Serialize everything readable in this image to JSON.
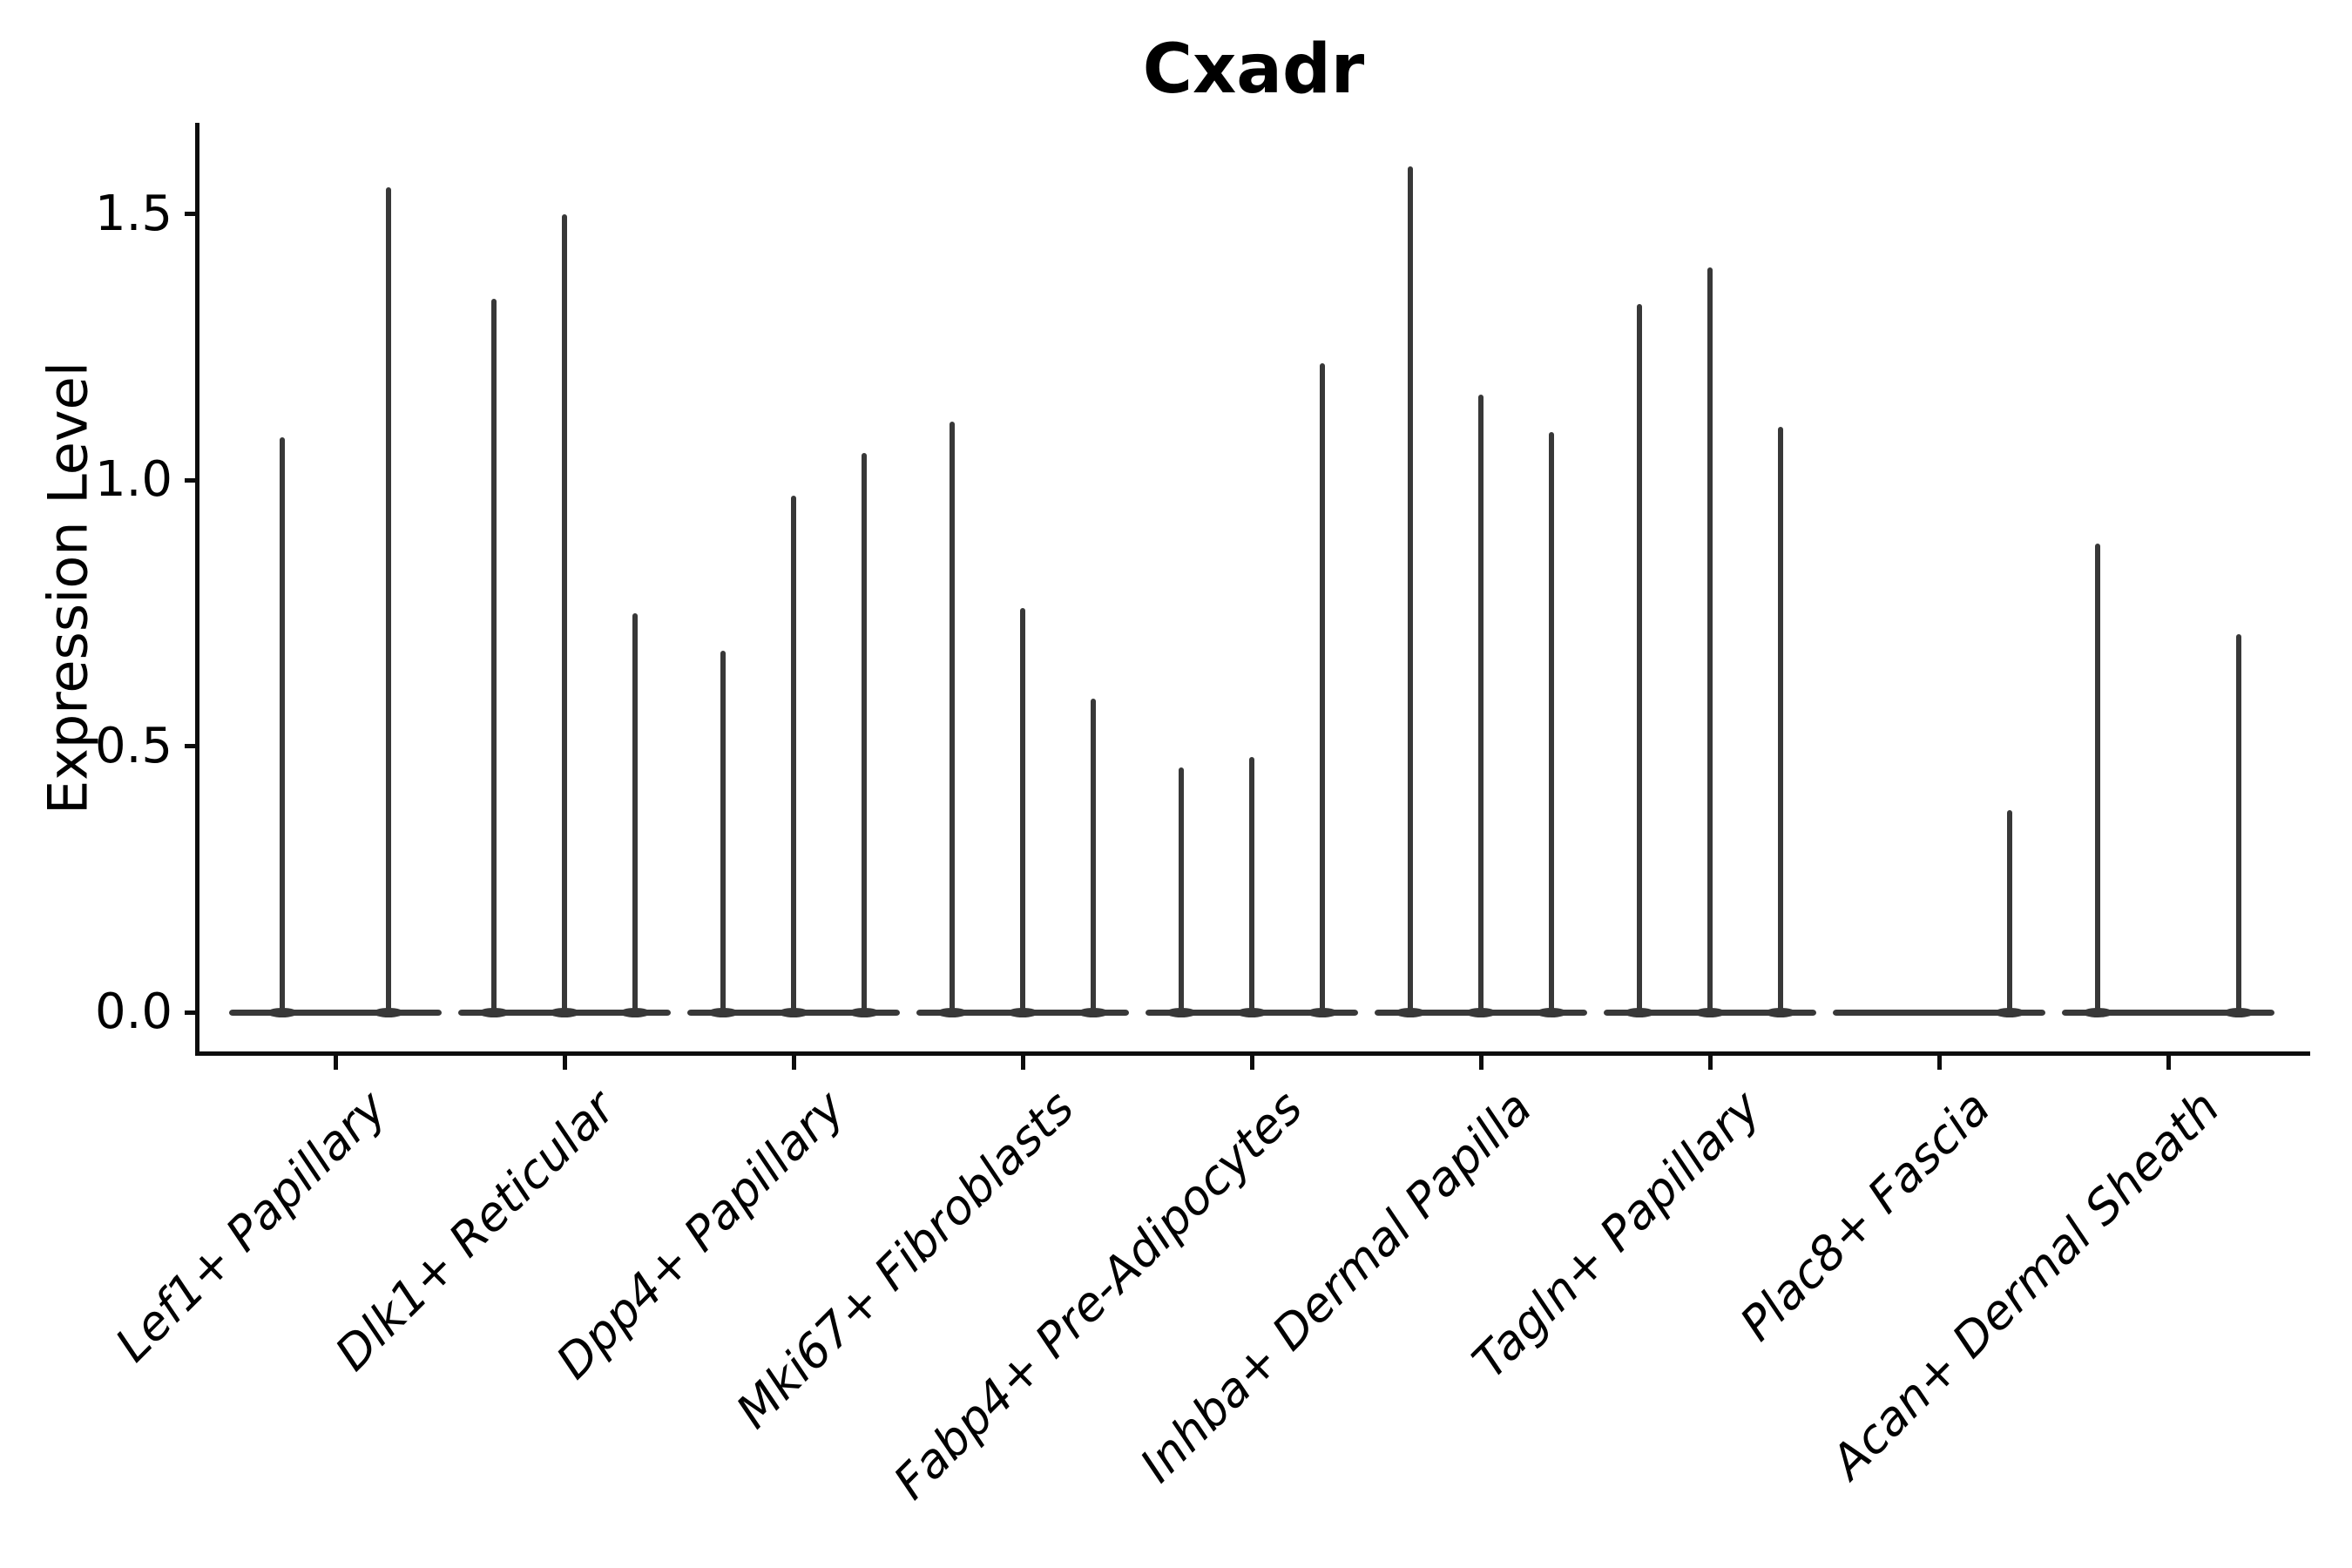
{
  "title": "Cxadr",
  "ylabel": "Expression Level",
  "colors": {
    "violin": "#383838",
    "axis": "#0d0d0d",
    "background": "#ffffff",
    "text": "#000000"
  },
  "chart_data": {
    "type": "violin",
    "title": "Cxadr",
    "xlabel": "",
    "ylabel": "Expression Level",
    "ylim": [
      -0.08,
      1.67
    ],
    "grid": false,
    "legend": "none",
    "yticks": [
      {
        "label": "0.0",
        "value": 0.0
      },
      {
        "label": "0.5",
        "value": 0.5
      },
      {
        "label": "1.0",
        "value": 1.0
      },
      {
        "label": "1.5",
        "value": 1.5
      }
    ],
    "categories": [
      "Lef1+ Papillary",
      "Dlk1+ Reticular",
      "Dpp4+ Papillary",
      "Mki67+ Fibroblasts",
      "Fabp4+ Pre-Adipocytes",
      "Inhba+ Dermal Papilla",
      "Tagln+ Papillary",
      "Plac8+ Fascia",
      "Acan+ Dermal Sheath"
    ],
    "groups": [
      {
        "category": "Lef1+ Papillary",
        "violin_max_values": [
          1.08,
          1.55
        ]
      },
      {
        "category": "Dlk1+ Reticular",
        "violin_max_values": [
          1.34,
          1.5,
          0.75
        ]
      },
      {
        "category": "Dpp4+ Papillary",
        "violin_max_values": [
          0.68,
          0.97,
          1.05
        ]
      },
      {
        "category": "Mki67+ Fibroblasts",
        "violin_max_values": [
          1.11,
          0.76,
          0.59
        ]
      },
      {
        "category": "Fabp4+ Pre-Adipocytes",
        "violin_max_values": [
          0.46,
          0.48,
          1.22
        ]
      },
      {
        "category": "Inhba+ Dermal Papilla",
        "violin_max_values": [
          1.59,
          1.16,
          1.09
        ]
      },
      {
        "category": "Tagln+ Papillary",
        "violin_max_values": [
          1.33,
          1.4,
          1.1
        ]
      },
      {
        "category": "Plac8+ Fascia",
        "violin_max_values": [
          0.0,
          0.0,
          0.38
        ]
      },
      {
        "category": "Acan+ Dermal Sheath",
        "violin_max_values": [
          0.88,
          0.0,
          0.71
        ]
      }
    ],
    "notes": "Each category shows one very thin violin per sample; expression mass concentrated at 0 forms a flat base with a thin spike up to the maximum value."
  }
}
